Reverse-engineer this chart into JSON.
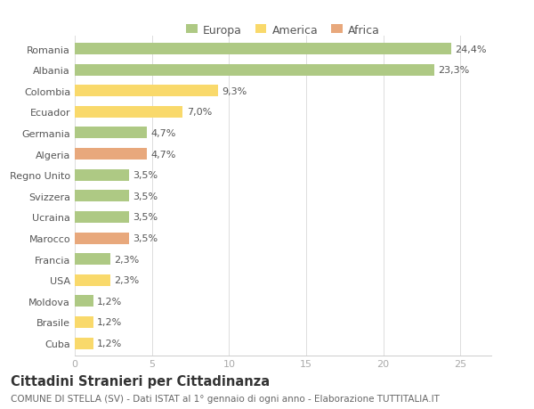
{
  "categories": [
    "Romania",
    "Albania",
    "Colombia",
    "Ecuador",
    "Germania",
    "Algeria",
    "Regno Unito",
    "Svizzera",
    "Ucraina",
    "Marocco",
    "Francia",
    "USA",
    "Moldova",
    "Brasile",
    "Cuba"
  ],
  "values": [
    24.4,
    23.3,
    9.3,
    7.0,
    4.7,
    4.7,
    3.5,
    3.5,
    3.5,
    3.5,
    2.3,
    2.3,
    1.2,
    1.2,
    1.2
  ],
  "labels": [
    "24,4%",
    "23,3%",
    "9,3%",
    "7,0%",
    "4,7%",
    "4,7%",
    "3,5%",
    "3,5%",
    "3,5%",
    "3,5%",
    "2,3%",
    "2,3%",
    "1,2%",
    "1,2%",
    "1,2%"
  ],
  "colors": [
    "#aec984",
    "#aec984",
    "#f9d96b",
    "#f9d96b",
    "#aec984",
    "#e8a87c",
    "#aec984",
    "#aec984",
    "#aec984",
    "#e8a87c",
    "#aec984",
    "#f9d96b",
    "#aec984",
    "#f9d96b",
    "#f9d96b"
  ],
  "legend_colors": {
    "Europa": "#aec984",
    "America": "#f9d96b",
    "Africa": "#e8a87c"
  },
  "xlim": [
    0,
    27
  ],
  "xticks": [
    0,
    5,
    10,
    15,
    20,
    25
  ],
  "title": "Cittadini Stranieri per Cittadinanza",
  "subtitle": "COMUNE DI STELLA (SV) - Dati ISTAT al 1° gennaio di ogni anno - Elaborazione TUTTITALIA.IT",
  "bg_color": "#ffffff",
  "bar_height": 0.55,
  "label_fontsize": 8,
  "ytick_fontsize": 8,
  "xtick_fontsize": 8,
  "title_fontsize": 10.5,
  "subtitle_fontsize": 7.5
}
